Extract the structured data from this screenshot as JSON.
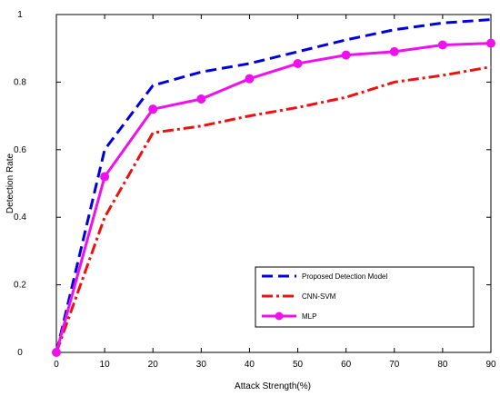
{
  "chart_data": {
    "type": "line",
    "title": "",
    "xlabel": "Attack Strength(%)",
    "ylabel": "Detection Rate",
    "xlim": [
      0,
      90
    ],
    "ylim": [
      0,
      1
    ],
    "x_ticks": [
      0,
      10,
      20,
      30,
      40,
      50,
      60,
      70,
      80,
      90
    ],
    "y_ticks": [
      0,
      0.2,
      0.4,
      0.6,
      0.8,
      1
    ],
    "y_tick_labels": [
      "0",
      "0.2",
      "0.4",
      "0.6",
      "0.8",
      "1"
    ],
    "grid": false,
    "legend_position": "bottom-right",
    "series": [
      {
        "name": "Proposed Detection Model",
        "style": "dashed",
        "color": "#0000dd",
        "marker": "none",
        "x": [
          0,
          10,
          20,
          30,
          40,
          50,
          60,
          70,
          80,
          90
        ],
        "values": [
          0.0,
          0.6,
          0.79,
          0.83,
          0.855,
          0.89,
          0.925,
          0.955,
          0.975,
          0.985
        ]
      },
      {
        "name": "CNN-SVM",
        "style": "dashdot",
        "color": "#ee1111",
        "marker": "none",
        "x": [
          0,
          10,
          20,
          30,
          40,
          50,
          60,
          70,
          80,
          90
        ],
        "values": [
          0.0,
          0.4,
          0.65,
          0.67,
          0.7,
          0.725,
          0.755,
          0.8,
          0.82,
          0.845
        ]
      },
      {
        "name": "MLP",
        "style": "solid",
        "color": "#ee11ee",
        "marker": "circle",
        "x": [
          0,
          10,
          20,
          30,
          40,
          50,
          60,
          70,
          80,
          90
        ],
        "values": [
          0.0,
          0.52,
          0.72,
          0.75,
          0.81,
          0.855,
          0.88,
          0.89,
          0.91,
          0.915
        ]
      }
    ]
  }
}
